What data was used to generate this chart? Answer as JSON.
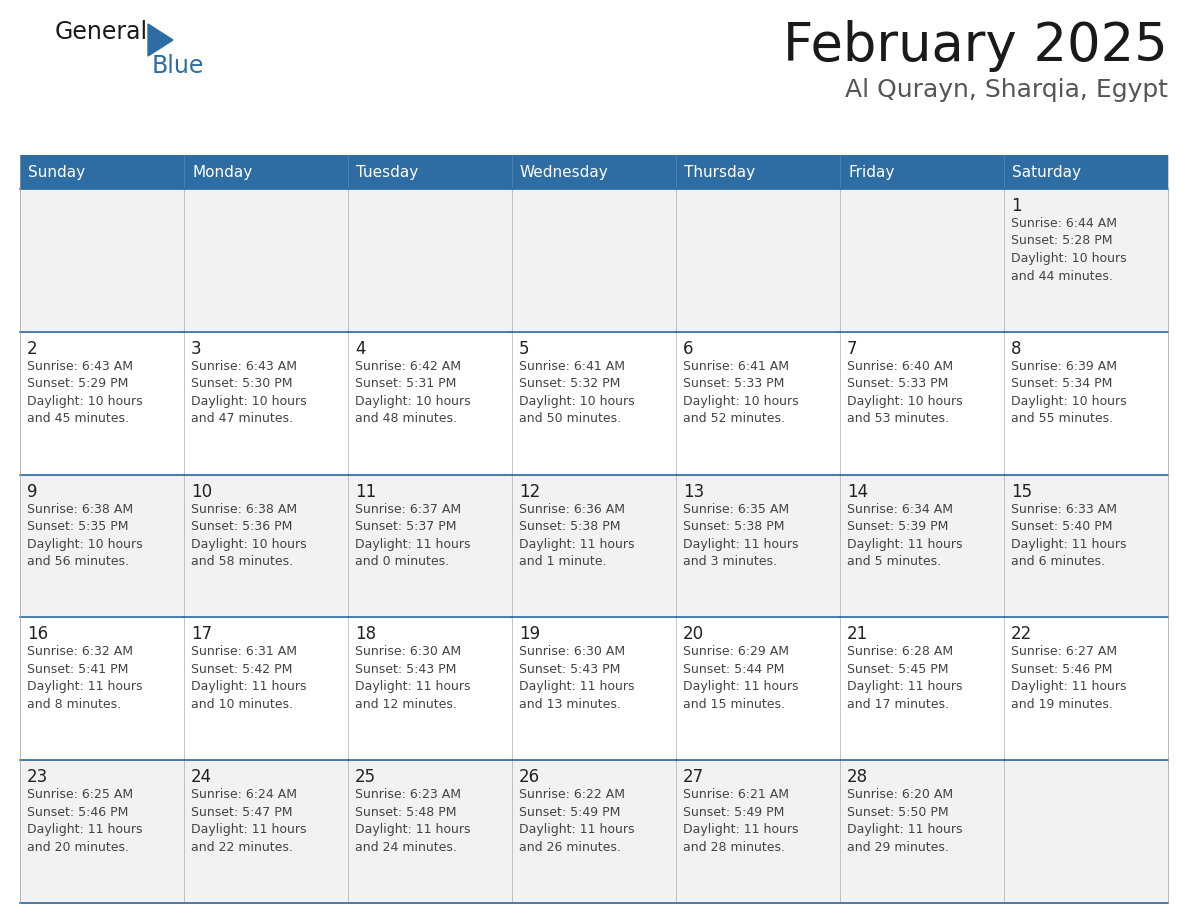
{
  "title": "February 2025",
  "subtitle": "Al Qurayn, Sharqia, Egypt",
  "header_bg": "#2E6DA4",
  "header_text": "#FFFFFF",
  "cell_bg_odd": "#F2F2F2",
  "cell_bg_even": "#FFFFFF",
  "border_color": "#2E6DA4",
  "cell_border_color": "#AAAAAA",
  "text_color": "#222222",
  "info_color": "#444444",
  "day_headers": [
    "Sunday",
    "Monday",
    "Tuesday",
    "Wednesday",
    "Thursday",
    "Friday",
    "Saturday"
  ],
  "weeks": [
    [
      {
        "day": "",
        "info": ""
      },
      {
        "day": "",
        "info": ""
      },
      {
        "day": "",
        "info": ""
      },
      {
        "day": "",
        "info": ""
      },
      {
        "day": "",
        "info": ""
      },
      {
        "day": "",
        "info": ""
      },
      {
        "day": "1",
        "info": "Sunrise: 6:44 AM\nSunset: 5:28 PM\nDaylight: 10 hours\nand 44 minutes."
      }
    ],
    [
      {
        "day": "2",
        "info": "Sunrise: 6:43 AM\nSunset: 5:29 PM\nDaylight: 10 hours\nand 45 minutes."
      },
      {
        "day": "3",
        "info": "Sunrise: 6:43 AM\nSunset: 5:30 PM\nDaylight: 10 hours\nand 47 minutes."
      },
      {
        "day": "4",
        "info": "Sunrise: 6:42 AM\nSunset: 5:31 PM\nDaylight: 10 hours\nand 48 minutes."
      },
      {
        "day": "5",
        "info": "Sunrise: 6:41 AM\nSunset: 5:32 PM\nDaylight: 10 hours\nand 50 minutes."
      },
      {
        "day": "6",
        "info": "Sunrise: 6:41 AM\nSunset: 5:33 PM\nDaylight: 10 hours\nand 52 minutes."
      },
      {
        "day": "7",
        "info": "Sunrise: 6:40 AM\nSunset: 5:33 PM\nDaylight: 10 hours\nand 53 minutes."
      },
      {
        "day": "8",
        "info": "Sunrise: 6:39 AM\nSunset: 5:34 PM\nDaylight: 10 hours\nand 55 minutes."
      }
    ],
    [
      {
        "day": "9",
        "info": "Sunrise: 6:38 AM\nSunset: 5:35 PM\nDaylight: 10 hours\nand 56 minutes."
      },
      {
        "day": "10",
        "info": "Sunrise: 6:38 AM\nSunset: 5:36 PM\nDaylight: 10 hours\nand 58 minutes."
      },
      {
        "day": "11",
        "info": "Sunrise: 6:37 AM\nSunset: 5:37 PM\nDaylight: 11 hours\nand 0 minutes."
      },
      {
        "day": "12",
        "info": "Sunrise: 6:36 AM\nSunset: 5:38 PM\nDaylight: 11 hours\nand 1 minute."
      },
      {
        "day": "13",
        "info": "Sunrise: 6:35 AM\nSunset: 5:38 PM\nDaylight: 11 hours\nand 3 minutes."
      },
      {
        "day": "14",
        "info": "Sunrise: 6:34 AM\nSunset: 5:39 PM\nDaylight: 11 hours\nand 5 minutes."
      },
      {
        "day": "15",
        "info": "Sunrise: 6:33 AM\nSunset: 5:40 PM\nDaylight: 11 hours\nand 6 minutes."
      }
    ],
    [
      {
        "day": "16",
        "info": "Sunrise: 6:32 AM\nSunset: 5:41 PM\nDaylight: 11 hours\nand 8 minutes."
      },
      {
        "day": "17",
        "info": "Sunrise: 6:31 AM\nSunset: 5:42 PM\nDaylight: 11 hours\nand 10 minutes."
      },
      {
        "day": "18",
        "info": "Sunrise: 6:30 AM\nSunset: 5:43 PM\nDaylight: 11 hours\nand 12 minutes."
      },
      {
        "day": "19",
        "info": "Sunrise: 6:30 AM\nSunset: 5:43 PM\nDaylight: 11 hours\nand 13 minutes."
      },
      {
        "day": "20",
        "info": "Sunrise: 6:29 AM\nSunset: 5:44 PM\nDaylight: 11 hours\nand 15 minutes."
      },
      {
        "day": "21",
        "info": "Sunrise: 6:28 AM\nSunset: 5:45 PM\nDaylight: 11 hours\nand 17 minutes."
      },
      {
        "day": "22",
        "info": "Sunrise: 6:27 AM\nSunset: 5:46 PM\nDaylight: 11 hours\nand 19 minutes."
      }
    ],
    [
      {
        "day": "23",
        "info": "Sunrise: 6:25 AM\nSunset: 5:46 PM\nDaylight: 11 hours\nand 20 minutes."
      },
      {
        "day": "24",
        "info": "Sunrise: 6:24 AM\nSunset: 5:47 PM\nDaylight: 11 hours\nand 22 minutes."
      },
      {
        "day": "25",
        "info": "Sunrise: 6:23 AM\nSunset: 5:48 PM\nDaylight: 11 hours\nand 24 minutes."
      },
      {
        "day": "26",
        "info": "Sunrise: 6:22 AM\nSunset: 5:49 PM\nDaylight: 11 hours\nand 26 minutes."
      },
      {
        "day": "27",
        "info": "Sunrise: 6:21 AM\nSunset: 5:49 PM\nDaylight: 11 hours\nand 28 minutes."
      },
      {
        "day": "28",
        "info": "Sunrise: 6:20 AM\nSunset: 5:50 PM\nDaylight: 11 hours\nand 29 minutes."
      },
      {
        "day": "",
        "info": ""
      }
    ]
  ],
  "logo_general_color": "#1a1a1a",
  "logo_blue_color": "#2E6DA4",
  "title_fontsize": 38,
  "subtitle_fontsize": 18,
  "header_fontsize": 11,
  "day_num_fontsize": 12,
  "info_fontsize": 9
}
